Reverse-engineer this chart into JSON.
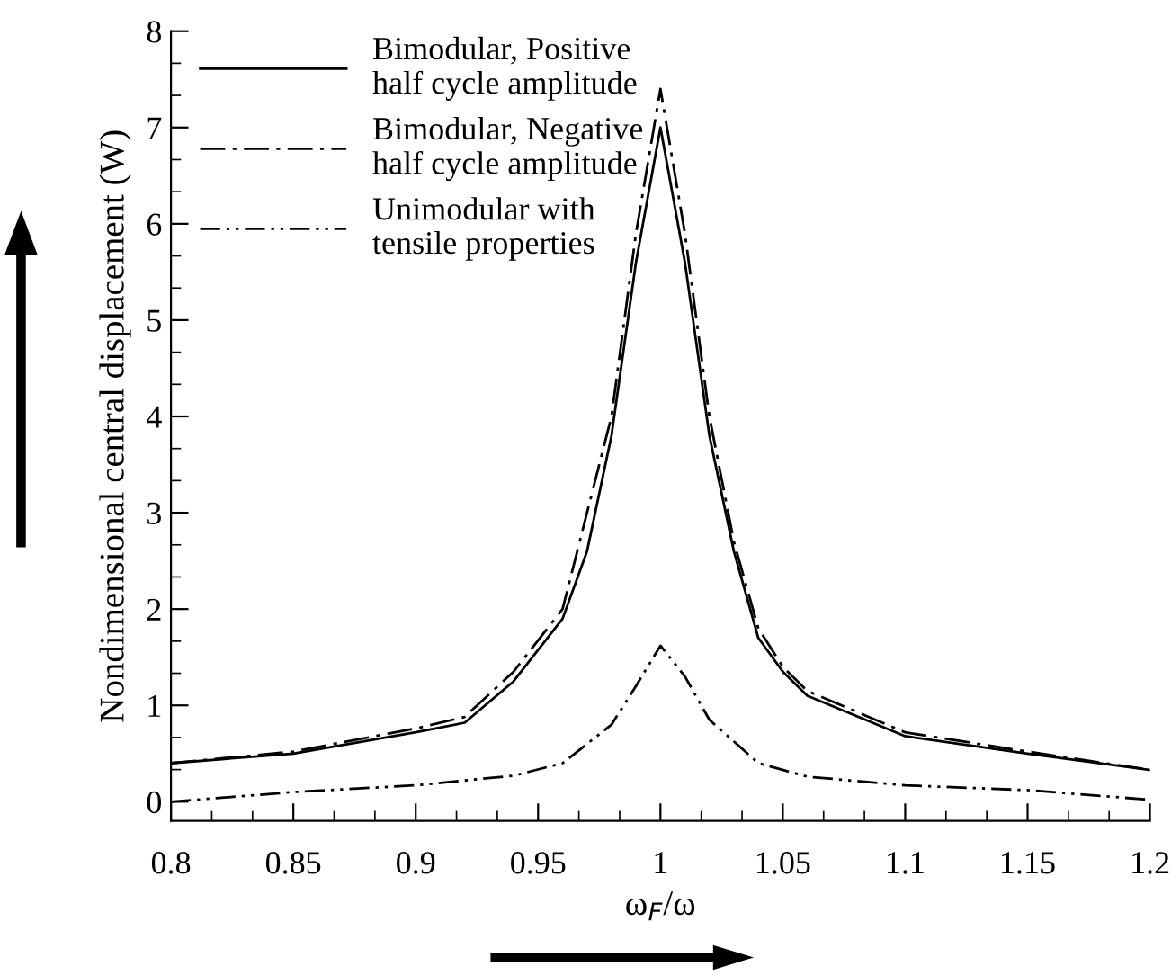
{
  "chart_data": {
    "type": "line",
    "xlabel": "ω$_{F}$/ω",
    "ylabel": "Nondimensional central displacement (W)",
    "xlim": [
      0.8,
      1.2
    ],
    "xticks": [
      0.8,
      0.85,
      0.9,
      0.95,
      1,
      1.05,
      1.1,
      1.15,
      1.2
    ],
    "ylim": [
      -0.2,
      8
    ],
    "yticks": [
      0,
      1,
      2,
      3,
      4,
      5,
      6,
      7,
      8
    ],
    "grid": false,
    "legend": "top left",
    "marker": "none",
    "series": [
      {
        "name": "Bimodular, Positive\nhalf cycle amplitude",
        "color": "#000000",
        "line_style": "solid",
        "x": [
          0.8,
          0.85,
          0.9,
          0.92,
          0.94,
          0.96,
          0.97,
          0.98,
          0.99,
          1.0,
          1.01,
          1.02,
          1.03,
          1.04,
          1.05,
          1.06,
          1.1,
          1.15,
          1.2
        ],
        "values": [
          0.4,
          0.5,
          0.72,
          0.82,
          1.25,
          1.9,
          2.6,
          3.8,
          5.6,
          7.0,
          5.6,
          3.8,
          2.6,
          1.7,
          1.35,
          1.1,
          0.68,
          0.5,
          0.33
        ]
      },
      {
        "name": "Bimodular, Negative\nhalf cycle amplitude",
        "color": "#000000",
        "line_style": "dashed",
        "x": [
          0.8,
          0.85,
          0.9,
          0.92,
          0.94,
          0.96,
          0.98,
          0.99,
          1.0,
          1.01,
          1.02,
          1.03,
          1.04,
          1.05,
          1.06,
          1.1,
          1.15,
          1.2
        ],
        "values": [
          0.4,
          0.52,
          0.76,
          0.88,
          1.35,
          2.0,
          4.0,
          5.9,
          7.4,
          5.9,
          4.0,
          2.7,
          1.8,
          1.4,
          1.15,
          0.72,
          0.52,
          0.33
        ]
      },
      {
        "name": "Unimodular with\ntensile properties",
        "color": "#000000",
        "line_style": "dotted",
        "x": [
          0.8,
          0.85,
          0.9,
          0.94,
          0.96,
          0.98,
          0.99,
          1.0,
          1.01,
          1.02,
          1.04,
          1.06,
          1.1,
          1.15,
          1.2
        ],
        "values": [
          0,
          0.1,
          0.17,
          0.27,
          0.4,
          0.8,
          1.2,
          1.62,
          1.3,
          0.85,
          0.4,
          0.26,
          0.17,
          0.12,
          0.02
        ]
      }
    ]
  }
}
